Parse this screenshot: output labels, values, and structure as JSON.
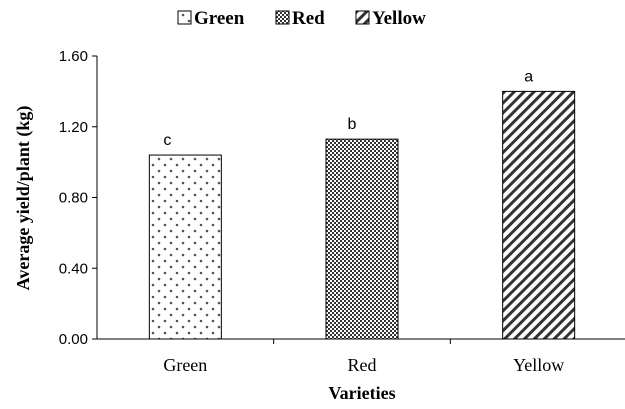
{
  "chart_data": {
    "type": "bar",
    "categories": [
      "Green",
      "Red",
      "Yellow"
    ],
    "values": [
      1.04,
      1.13,
      1.4
    ],
    "significance_letters": [
      "c",
      "b",
      "a"
    ],
    "patterns": [
      "dots",
      "checker",
      "diagonal"
    ],
    "legend": [
      "Green",
      "Red",
      "Yellow"
    ],
    "legend_position": "top",
    "xlabel": "Varieties",
    "ylabel": "Average yield/plant  (kg)",
    "ylim": [
      0,
      1.6
    ],
    "yticks": [
      "0.00",
      "0.40",
      "0.80",
      "1.20",
      "1.60"
    ],
    "ytick_values": [
      0,
      0.4,
      0.8,
      1.2,
      1.6
    ],
    "grid": false
  }
}
